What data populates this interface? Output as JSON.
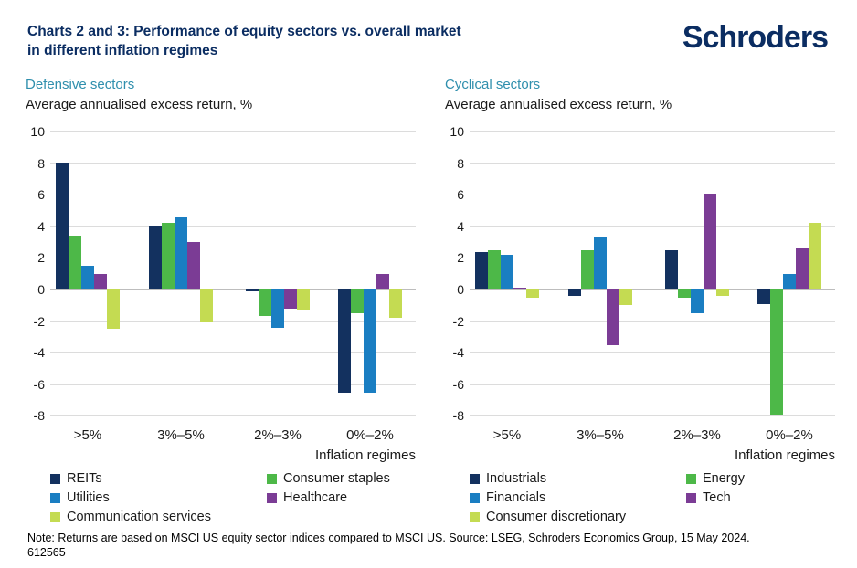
{
  "header": {
    "title": "Charts 2 and 3: Performance of equity sectors vs. overall market\nin different inflation regimes",
    "logo": "Schroders"
  },
  "colors": {
    "brand_navy": "#0b2d62",
    "subtitle_teal": "#2f8fad",
    "gridline": "#dcdcdc",
    "zero_line": "#bdbdbd"
  },
  "footnote": {
    "line1": "Note: Returns are based on MSCI US equity sector indices compared to MSCI US. Source: LSEG, Schroders Economics Group, 15 May 2024.",
    "line2": "612565"
  },
  "chart_data": [
    {
      "type": "bar",
      "title": "Defensive sectors",
      "ylabel_title": "Average annualised excess return, %",
      "xlabel": "Inflation regimes",
      "categories": [
        ">5%",
        "3%–5%",
        "2%–3%",
        "0%–2%"
      ],
      "ylim": [
        -8,
        10
      ],
      "ytick_step": 2,
      "grid": true,
      "legend_position": "bottom",
      "series": [
        {
          "name": "REITs",
          "color": "#13315f",
          "values": [
            8.0,
            4.0,
            -0.1,
            -6.5
          ]
        },
        {
          "name": "Consumer staples",
          "color": "#4db848",
          "values": [
            3.4,
            4.25,
            -1.7,
            -1.5
          ]
        },
        {
          "name": "Utilities",
          "color": "#1a7ec2",
          "values": [
            1.5,
            4.55,
            -2.4,
            -6.5
          ]
        },
        {
          "name": "Healthcare",
          "color": "#7b3c95",
          "values": [
            1.0,
            3.0,
            -1.2,
            1.0
          ]
        },
        {
          "name": "Communication services",
          "color": "#c4db52",
          "values": [
            -2.5,
            -2.1,
            -1.3,
            -1.8
          ]
        }
      ]
    },
    {
      "type": "bar",
      "title": "Cyclical sectors",
      "ylabel_title": "Average annualised excess return, %",
      "xlabel": "Inflation regimes",
      "categories": [
        ">5%",
        "3%–5%",
        "2%–3%",
        "0%–2%"
      ],
      "ylim": [
        -8,
        10
      ],
      "ytick_step": 2,
      "grid": true,
      "legend_position": "bottom",
      "series": [
        {
          "name": "Industrials",
          "color": "#13315f",
          "values": [
            2.4,
            -0.4,
            2.5,
            -0.9
          ]
        },
        {
          "name": "Energy",
          "color": "#4db848",
          "values": [
            2.5,
            2.5,
            -0.5,
            -7.9
          ]
        },
        {
          "name": "Financials",
          "color": "#1a7ec2",
          "values": [
            2.2,
            3.3,
            -1.5,
            1.0
          ]
        },
        {
          "name": "Tech",
          "color": "#7b3c95",
          "values": [
            0.1,
            -3.5,
            6.1,
            2.6
          ]
        },
        {
          "name": "Consumer discretionary",
          "color": "#c4db52",
          "values": [
            -0.5,
            -1.0,
            -0.4,
            4.2
          ]
        }
      ]
    }
  ]
}
